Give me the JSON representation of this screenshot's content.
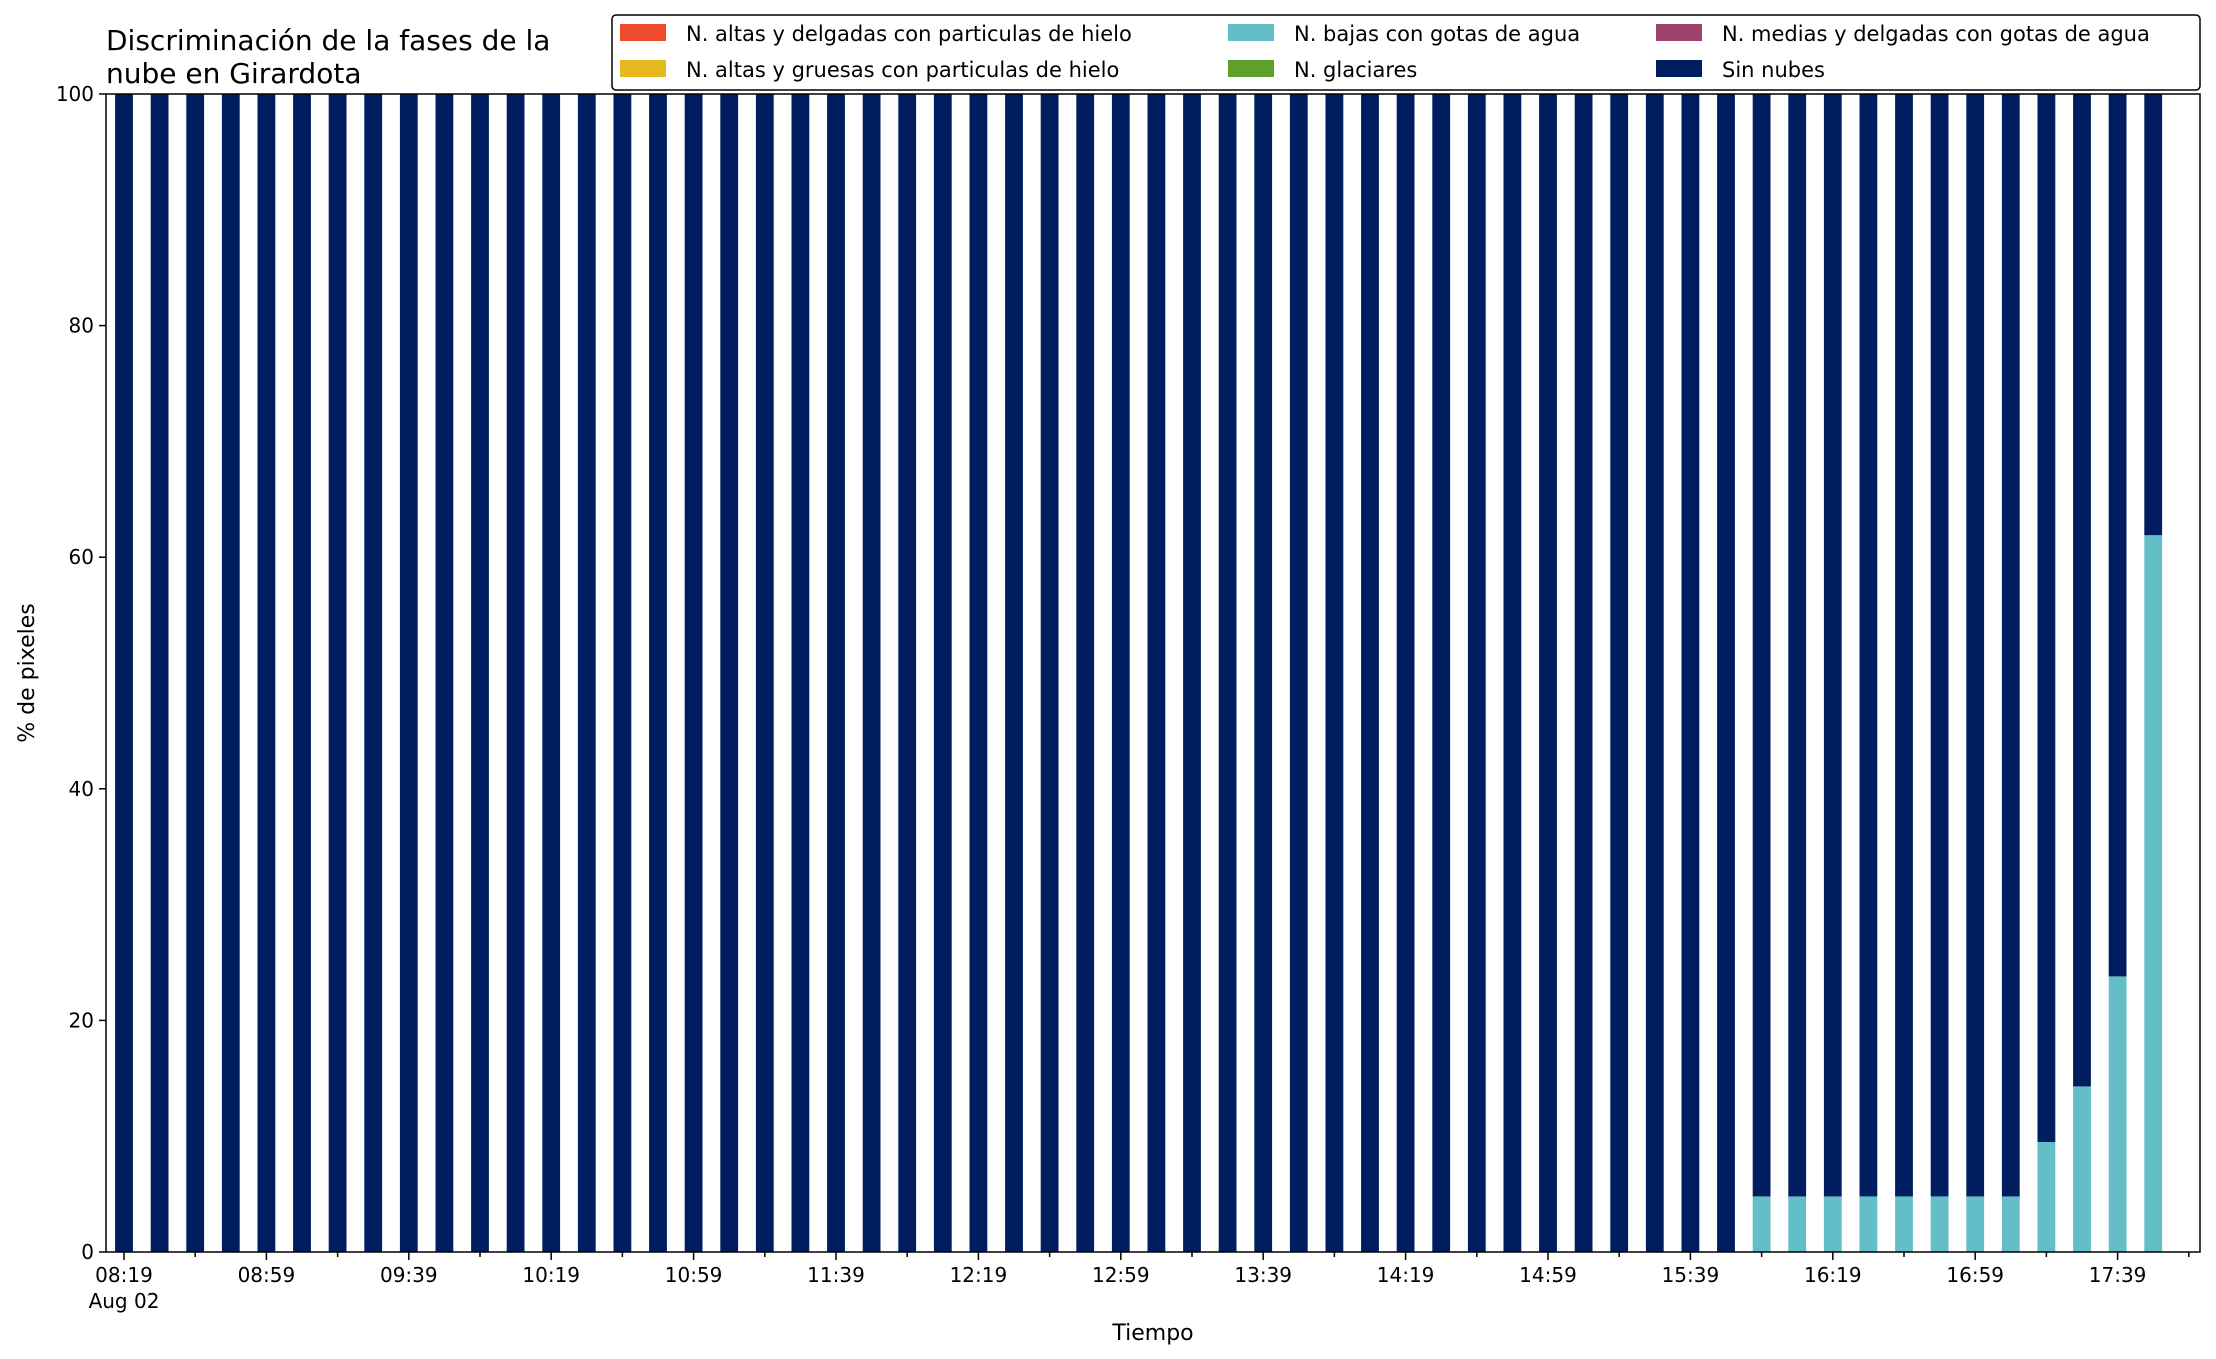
{
  "chart_data": {
    "type": "bar",
    "stacked": true,
    "title_lines": [
      "Discriminación de la fases de la",
      "nube en Girardota"
    ],
    "xlabel": "Tiempo",
    "ylabel": "% de pixeles",
    "ylim": [
      0,
      100
    ],
    "yticks": [
      "0",
      "20",
      "40",
      "60",
      "80",
      "100"
    ],
    "grid": false,
    "legend_position": "top-right",
    "x_tick_labels": [
      "08:19",
      "08:59",
      "09:39",
      "10:19",
      "10:59",
      "11:39",
      "12:19",
      "12:59",
      "13:39",
      "14:19",
      "14:59",
      "15:39",
      "16:19",
      "16:59",
      "17:39"
    ],
    "x_date_label": "Aug 02",
    "categories": [
      "08:19",
      "08:29",
      "08:39",
      "08:49",
      "08:59",
      "09:09",
      "09:19",
      "09:29",
      "09:39",
      "09:49",
      "09:59",
      "10:09",
      "10:19",
      "10:29",
      "10:39",
      "10:49",
      "10:59",
      "11:09",
      "11:19",
      "11:29",
      "11:39",
      "11:49",
      "11:59",
      "12:09",
      "12:19",
      "12:29",
      "12:39",
      "12:49",
      "12:59",
      "13:09",
      "13:19",
      "13:29",
      "13:39",
      "13:49",
      "13:59",
      "14:09",
      "14:19",
      "14:29",
      "14:39",
      "14:49",
      "14:59",
      "15:09",
      "15:19",
      "15:29",
      "15:39",
      "15:49",
      "15:59",
      "16:09",
      "16:19",
      "16:29",
      "16:39",
      "16:49",
      "16:59",
      "17:09",
      "17:19",
      "17:29",
      "17:39",
      "17:49"
    ],
    "series": [
      {
        "name": "N. altas y delgadas con particulas de hielo",
        "color": "#EE4B2B",
        "values": [
          0,
          0,
          0,
          0,
          0,
          0,
          0,
          0,
          0,
          0,
          0,
          0,
          0,
          0,
          0,
          0,
          0,
          0,
          0,
          0,
          0,
          0,
          0,
          0,
          0,
          0,
          0,
          0,
          0,
          0,
          0,
          0,
          0,
          0,
          0,
          0,
          0,
          0,
          0,
          0,
          0,
          0,
          0,
          0,
          0,
          0,
          0,
          0,
          0,
          0,
          0,
          0,
          0,
          0,
          0,
          0,
          0,
          0
        ]
      },
      {
        "name": "N. altas y gruesas con particulas de hielo",
        "color": "#E6B91E",
        "values": [
          0,
          0,
          0,
          0,
          0,
          0,
          0,
          0,
          0,
          0,
          0,
          0,
          0,
          0,
          0,
          0,
          0,
          0,
          0,
          0,
          0,
          0,
          0,
          0,
          0,
          0,
          0,
          0,
          0,
          0,
          0,
          0,
          0,
          0,
          0,
          0,
          0,
          0,
          0,
          0,
          0,
          0,
          0,
          0,
          0,
          0,
          0,
          0,
          0,
          0,
          0,
          0,
          0,
          0,
          0,
          0,
          0,
          0
        ]
      },
      {
        "name": "N. bajas con gotas de agua",
        "color": "#64BEC8",
        "values": [
          0,
          0,
          0,
          0,
          0,
          0,
          0,
          0,
          0,
          0,
          0,
          0,
          0,
          0,
          0,
          0,
          0,
          0,
          0,
          0,
          0,
          0,
          0,
          0,
          0,
          0,
          0,
          0,
          0,
          0,
          0,
          0,
          0,
          0,
          0,
          0,
          0,
          0,
          0,
          0,
          0,
          0,
          0,
          0,
          0,
          0,
          4.8,
          4.8,
          4.8,
          4.8,
          4.8,
          4.8,
          4.8,
          4.8,
          9.5,
          14.3,
          23.8,
          61.9
        ]
      },
      {
        "name": "N. glaciares",
        "color": "#5FA02D",
        "values": [
          0,
          0,
          0,
          0,
          0,
          0,
          0,
          0,
          0,
          0,
          0,
          0,
          0,
          0,
          0,
          0,
          0,
          0,
          0,
          0,
          0,
          0,
          0,
          0,
          0,
          0,
          0,
          0,
          0,
          0,
          0,
          0,
          0,
          0,
          0,
          0,
          0,
          0,
          0,
          0,
          0,
          0,
          0,
          0,
          0,
          0,
          0,
          0,
          0,
          0,
          0,
          0,
          0,
          0,
          0,
          0,
          0,
          0
        ]
      },
      {
        "name": "N. medias y delgadas con gotas de agua",
        "color": "#A0426E",
        "values": [
          0,
          0,
          0,
          0,
          0,
          0,
          0,
          0,
          0,
          0,
          0,
          0,
          0,
          0,
          0,
          0,
          0,
          0,
          0,
          0,
          0,
          0,
          0,
          0,
          0,
          0,
          0,
          0,
          0,
          0,
          0,
          0,
          0,
          0,
          0,
          0,
          0,
          0,
          0,
          0,
          0,
          0,
          0,
          0,
          0,
          0,
          0,
          0,
          0,
          0,
          0,
          0,
          0,
          0,
          0,
          0,
          0,
          0
        ]
      },
      {
        "name": "Sin nubes",
        "color": "#001E5F",
        "values": [
          100,
          100,
          100,
          100,
          100,
          100,
          100,
          100,
          100,
          100,
          100,
          100,
          100,
          100,
          100,
          100,
          100,
          100,
          100,
          100,
          100,
          100,
          100,
          100,
          100,
          100,
          100,
          100,
          100,
          100,
          100,
          100,
          100,
          100,
          100,
          100,
          100,
          100,
          100,
          100,
          100,
          100,
          100,
          100,
          100,
          100,
          95.2,
          95.2,
          95.2,
          95.2,
          95.2,
          95.2,
          95.2,
          95.2,
          90.5,
          85.7,
          76.2,
          38.1
        ]
      }
    ]
  }
}
